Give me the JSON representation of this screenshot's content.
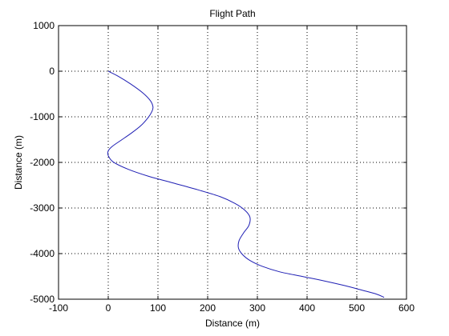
{
  "chart_data": {
    "type": "line",
    "title": "Flight Path",
    "xlabel": "Distance (m)",
    "ylabel": "Distance (m)",
    "xlim": [
      -100,
      600
    ],
    "ylim": [
      -5000,
      1000
    ],
    "xticks": [
      -100,
      0,
      100,
      200,
      300,
      400,
      500,
      600
    ],
    "yticks": [
      -5000,
      -4000,
      -3000,
      -2000,
      -1000,
      0,
      1000
    ],
    "grid": true,
    "series": [
      {
        "color": "#1f1fb4",
        "x": [
          0,
          20,
          45,
          70,
          85,
          90,
          88,
          80,
          65,
          45,
          25,
          8,
          0,
          0,
          10,
          40,
          80,
          130,
          180,
          225,
          255,
          275,
          285,
          283,
          272,
          263,
          262,
          270,
          285,
          310,
          345,
          390,
          435,
          475,
          510,
          540,
          555
        ],
        "y": [
          0,
          -110,
          -280,
          -480,
          -650,
          -780,
          -880,
          -1020,
          -1200,
          -1370,
          -1520,
          -1650,
          -1750,
          -1850,
          -1990,
          -2150,
          -2300,
          -2450,
          -2600,
          -2750,
          -2900,
          -3050,
          -3200,
          -3380,
          -3550,
          -3720,
          -3880,
          -4020,
          -4150,
          -4280,
          -4400,
          -4500,
          -4600,
          -4700,
          -4800,
          -4890,
          -4960
        ]
      }
    ]
  }
}
